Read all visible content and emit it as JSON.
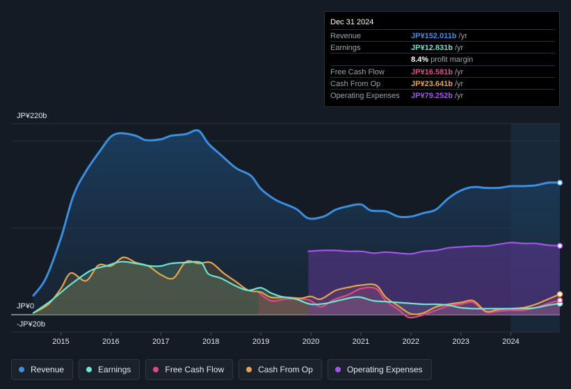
{
  "chart_data": {
    "type": "area",
    "y_axis": {
      "top_label": "JP¥220b",
      "zero_label": "JP¥0",
      "bottom_label": "-JP¥20b",
      "ylim": [
        -20,
        220
      ]
    },
    "x_ticks": [
      "2015",
      "2016",
      "2017",
      "2018",
      "2019",
      "2020",
      "2021",
      "2022",
      "2023",
      "2024"
    ],
    "xlim": [
      2014.45,
      2024.98
    ],
    "highlight_start": 2024.0,
    "series": [
      {
        "name": "Revenue",
        "color": "#3b8fe0",
        "points": [
          [
            2014.45,
            22
          ],
          [
            2014.7,
            42
          ],
          [
            2015.0,
            88
          ],
          [
            2015.25,
            137
          ],
          [
            2015.5,
            165
          ],
          [
            2015.8,
            190
          ],
          [
            2016.0,
            205
          ],
          [
            2016.2,
            209
          ],
          [
            2016.5,
            206
          ],
          [
            2016.7,
            201
          ],
          [
            2017.0,
            202
          ],
          [
            2017.2,
            206
          ],
          [
            2017.5,
            208
          ],
          [
            2017.75,
            212
          ],
          [
            2017.95,
            197
          ],
          [
            2018.2,
            184
          ],
          [
            2018.5,
            169
          ],
          [
            2018.8,
            160
          ],
          [
            2019.0,
            145
          ],
          [
            2019.3,
            132
          ],
          [
            2019.7,
            122
          ],
          [
            2019.95,
            111
          ],
          [
            2020.25,
            113
          ],
          [
            2020.5,
            121
          ],
          [
            2020.75,
            125
          ],
          [
            2021.0,
            127
          ],
          [
            2021.2,
            120
          ],
          [
            2021.5,
            119
          ],
          [
            2021.75,
            113
          ],
          [
            2022.0,
            113
          ],
          [
            2022.25,
            117
          ],
          [
            2022.5,
            121
          ],
          [
            2022.75,
            134
          ],
          [
            2023.0,
            143
          ],
          [
            2023.25,
            147
          ],
          [
            2023.5,
            146
          ],
          [
            2023.75,
            146
          ],
          [
            2024.0,
            148
          ],
          [
            2024.25,
            148
          ],
          [
            2024.5,
            149
          ],
          [
            2024.75,
            152
          ],
          [
            2024.98,
            152
          ]
        ]
      },
      {
        "name": "Earnings",
        "color": "#6de6d6",
        "points": [
          [
            2014.45,
            2
          ],
          [
            2014.8,
            16
          ],
          [
            2015.2,
            35
          ],
          [
            2015.6,
            51
          ],
          [
            2015.9,
            56
          ],
          [
            2016.2,
            61
          ],
          [
            2016.5,
            59
          ],
          [
            2016.8,
            56
          ],
          [
            2017.0,
            56
          ],
          [
            2017.2,
            59
          ],
          [
            2017.5,
            60
          ],
          [
            2017.8,
            60
          ],
          [
            2017.95,
            47
          ],
          [
            2018.2,
            42
          ],
          [
            2018.5,
            33
          ],
          [
            2018.75,
            28
          ],
          [
            2019.0,
            31
          ],
          [
            2019.2,
            25
          ],
          [
            2019.4,
            21
          ],
          [
            2019.7,
            18
          ],
          [
            2020.0,
            12
          ],
          [
            2020.3,
            13
          ],
          [
            2020.6,
            17
          ],
          [
            2020.85,
            20
          ],
          [
            2021.0,
            20
          ],
          [
            2021.25,
            16
          ],
          [
            2021.5,
            15
          ],
          [
            2021.75,
            14
          ],
          [
            2022.0,
            13
          ],
          [
            2022.25,
            12
          ],
          [
            2022.5,
            12
          ],
          [
            2022.75,
            11
          ],
          [
            2023.0,
            8
          ],
          [
            2023.25,
            7
          ],
          [
            2023.5,
            7
          ],
          [
            2023.75,
            7
          ],
          [
            2024.0,
            7
          ],
          [
            2024.25,
            7
          ],
          [
            2024.5,
            8
          ],
          [
            2024.75,
            11
          ],
          [
            2024.98,
            12.8
          ]
        ]
      },
      {
        "name": "Free Cash Flow",
        "color": "#d94c86",
        "points": [
          [
            2018.95,
            26
          ],
          [
            2019.2,
            16
          ],
          [
            2019.5,
            18
          ],
          [
            2019.8,
            18
          ],
          [
            2020.0,
            16
          ],
          [
            2020.2,
            9
          ],
          [
            2020.45,
            17
          ],
          [
            2020.75,
            23
          ],
          [
            2021.0,
            30
          ],
          [
            2021.3,
            30
          ],
          [
            2021.5,
            16
          ],
          [
            2021.75,
            6
          ],
          [
            2021.95,
            -3
          ],
          [
            2022.2,
            -1
          ],
          [
            2022.5,
            5
          ],
          [
            2022.75,
            10
          ],
          [
            2023.0,
            12
          ],
          [
            2023.25,
            14
          ],
          [
            2023.5,
            3
          ],
          [
            2023.75,
            4
          ],
          [
            2024.0,
            5
          ],
          [
            2024.25,
            5
          ],
          [
            2024.5,
            8
          ],
          [
            2024.75,
            13
          ],
          [
            2024.98,
            16.6
          ]
        ]
      },
      {
        "name": "Cash From Op",
        "color": "#e8a44e",
        "points": [
          [
            2014.45,
            2
          ],
          [
            2014.75,
            12
          ],
          [
            2015.0,
            30
          ],
          [
            2015.2,
            48
          ],
          [
            2015.5,
            39
          ],
          [
            2015.75,
            57
          ],
          [
            2016.0,
            56
          ],
          [
            2016.25,
            66
          ],
          [
            2016.5,
            60
          ],
          [
            2016.75,
            56
          ],
          [
            2017.0,
            46
          ],
          [
            2017.25,
            42
          ],
          [
            2017.5,
            61
          ],
          [
            2017.75,
            59
          ],
          [
            2018.0,
            60
          ],
          [
            2018.25,
            48
          ],
          [
            2018.5,
            38
          ],
          [
            2018.75,
            28
          ],
          [
            2019.0,
            26
          ],
          [
            2019.2,
            20
          ],
          [
            2019.5,
            20
          ],
          [
            2019.8,
            19
          ],
          [
            2020.0,
            21
          ],
          [
            2020.2,
            18
          ],
          [
            2020.5,
            28
          ],
          [
            2020.8,
            32
          ],
          [
            2021.0,
            34
          ],
          [
            2021.3,
            34
          ],
          [
            2021.5,
            20
          ],
          [
            2021.75,
            10
          ],
          [
            2022.0,
            1
          ],
          [
            2022.25,
            2
          ],
          [
            2022.5,
            9
          ],
          [
            2022.75,
            12
          ],
          [
            2023.0,
            14
          ],
          [
            2023.25,
            16
          ],
          [
            2023.5,
            4
          ],
          [
            2023.75,
            6
          ],
          [
            2024.0,
            7
          ],
          [
            2024.25,
            8
          ],
          [
            2024.5,
            12
          ],
          [
            2024.75,
            18
          ],
          [
            2024.98,
            23.6
          ]
        ]
      },
      {
        "name": "Operating Expenses",
        "color": "#a355e8",
        "points": [
          [
            2019.95,
            73
          ],
          [
            2020.25,
            74
          ],
          [
            2020.5,
            74
          ],
          [
            2020.75,
            73
          ],
          [
            2021.0,
            73
          ],
          [
            2021.25,
            71
          ],
          [
            2021.5,
            72
          ],
          [
            2021.75,
            71
          ],
          [
            2022.0,
            70
          ],
          [
            2022.25,
            73
          ],
          [
            2022.5,
            74
          ],
          [
            2022.75,
            77
          ],
          [
            2023.0,
            78
          ],
          [
            2023.25,
            79
          ],
          [
            2023.5,
            79
          ],
          [
            2023.75,
            81
          ],
          [
            2024.0,
            83
          ],
          [
            2024.25,
            82
          ],
          [
            2024.5,
            82
          ],
          [
            2024.75,
            80
          ],
          [
            2024.98,
            79.3
          ]
        ]
      }
    ]
  },
  "tooltip": {
    "date": "Dec 31 2024",
    "rows": [
      {
        "label": "Revenue",
        "value": "JP¥152.011b",
        "unit": "/yr",
        "color": "#3b8fe0"
      },
      {
        "label": "Earnings",
        "value": "JP¥12.831b",
        "unit": "/yr",
        "color": "#6de6d6"
      },
      {
        "label": "",
        "value": "8.4%",
        "unit": "profit margin",
        "color": "#ffffff"
      },
      {
        "label": "Free Cash Flow",
        "value": "JP¥16.581b",
        "unit": "/yr",
        "color": "#d94c86"
      },
      {
        "label": "Cash From Op",
        "value": "JP¥23.641b",
        "unit": "/yr",
        "color": "#e8a44e"
      },
      {
        "label": "Operating Expenses",
        "value": "JP¥79.252b",
        "unit": "/yr",
        "color": "#a355e8"
      }
    ]
  },
  "legend": [
    {
      "label": "Revenue",
      "color": "#3b8fe0"
    },
    {
      "label": "Earnings",
      "color": "#6de6d6"
    },
    {
      "label": "Free Cash Flow",
      "color": "#d94c86"
    },
    {
      "label": "Cash From Op",
      "color": "#e8a44e"
    },
    {
      "label": "Operating Expenses",
      "color": "#a355e8"
    }
  ]
}
